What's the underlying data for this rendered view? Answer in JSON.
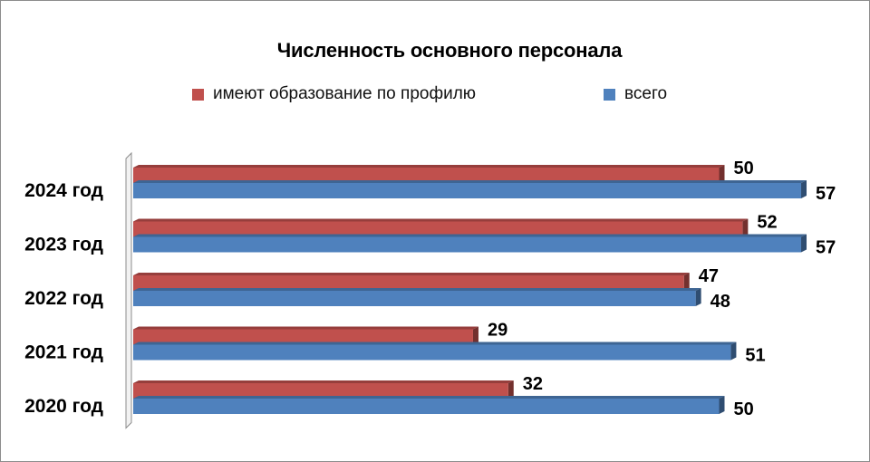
{
  "chart_data": {
    "type": "bar",
    "orientation": "horizontal",
    "title": "Численность основного персонала",
    "categories": [
      "2024 год",
      "2023 год",
      "2022 год",
      "2021 год",
      "2020 год"
    ],
    "series": [
      {
        "name": "имеют образование по профилю",
        "values": [
          50,
          52,
          47,
          29,
          32
        ],
        "color": "#c0504d"
      },
      {
        "name": "всего",
        "values": [
          57,
          57,
          48,
          51,
          50
        ],
        "color": "#4f81bd"
      }
    ],
    "xlim": [
      0,
      60
    ],
    "grid": false,
    "legend_position": "top"
  }
}
